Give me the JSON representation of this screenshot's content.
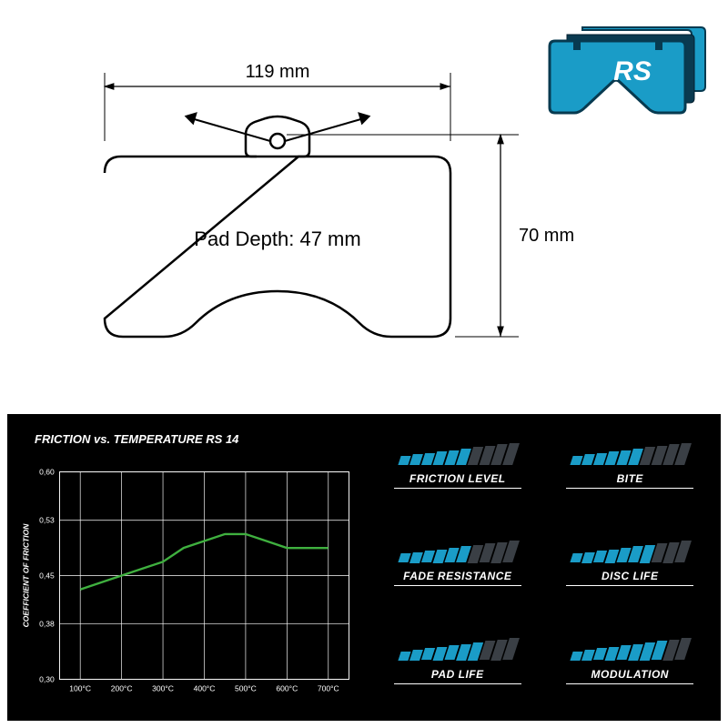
{
  "diagram": {
    "width_label": "119 mm",
    "height_label": "70 mm",
    "depth_label": "Pad Depth: 47 mm",
    "line_color": "#000000",
    "line_width": 2
  },
  "product_thumb": {
    "brand": "RS",
    "body_color": "#1a9cc7",
    "outline_color": "#0a5a7a"
  },
  "chart": {
    "title": "FRICTION vs. TEMPERATURE RS 14",
    "y_axis_title": "COEFFICIENT OF FRICTION",
    "x_ticks": [
      "100°C",
      "200°C",
      "300°C",
      "400°C",
      "500°C",
      "600°C",
      "700°C"
    ],
    "y_ticks": [
      "0,30",
      "0,38",
      "0,45",
      "0,53",
      "0,60"
    ],
    "grid_color": "#ffffff",
    "line_color": "#3fb03f",
    "background": "#000000",
    "series": [
      {
        "x": 100,
        "y": 0.43
      },
      {
        "x": 150,
        "y": 0.44
      },
      {
        "x": 200,
        "y": 0.45
      },
      {
        "x": 250,
        "y": 0.46
      },
      {
        "x": 300,
        "y": 0.47
      },
      {
        "x": 350,
        "y": 0.49
      },
      {
        "x": 400,
        "y": 0.5
      },
      {
        "x": 450,
        "y": 0.51
      },
      {
        "x": 500,
        "y": 0.51
      },
      {
        "x": 550,
        "y": 0.5
      },
      {
        "x": 600,
        "y": 0.49
      },
      {
        "x": 650,
        "y": 0.49
      },
      {
        "x": 700,
        "y": 0.49
      }
    ],
    "xlim": [
      50,
      750
    ],
    "ylim": [
      0.3,
      0.6
    ]
  },
  "ratings": {
    "max_bars": 10,
    "filled_color": "#1a9cc7",
    "empty_color": "#3a3f45",
    "items": [
      {
        "label": "FRICTION LEVEL",
        "value": 6
      },
      {
        "label": "BITE",
        "value": 6
      },
      {
        "label": "FADE RESISTANCE",
        "value": 6
      },
      {
        "label": "DISC LIFE",
        "value": 7
      },
      {
        "label": "PAD LIFE",
        "value": 7
      },
      {
        "label": "MODULATION",
        "value": 8
      }
    ]
  }
}
